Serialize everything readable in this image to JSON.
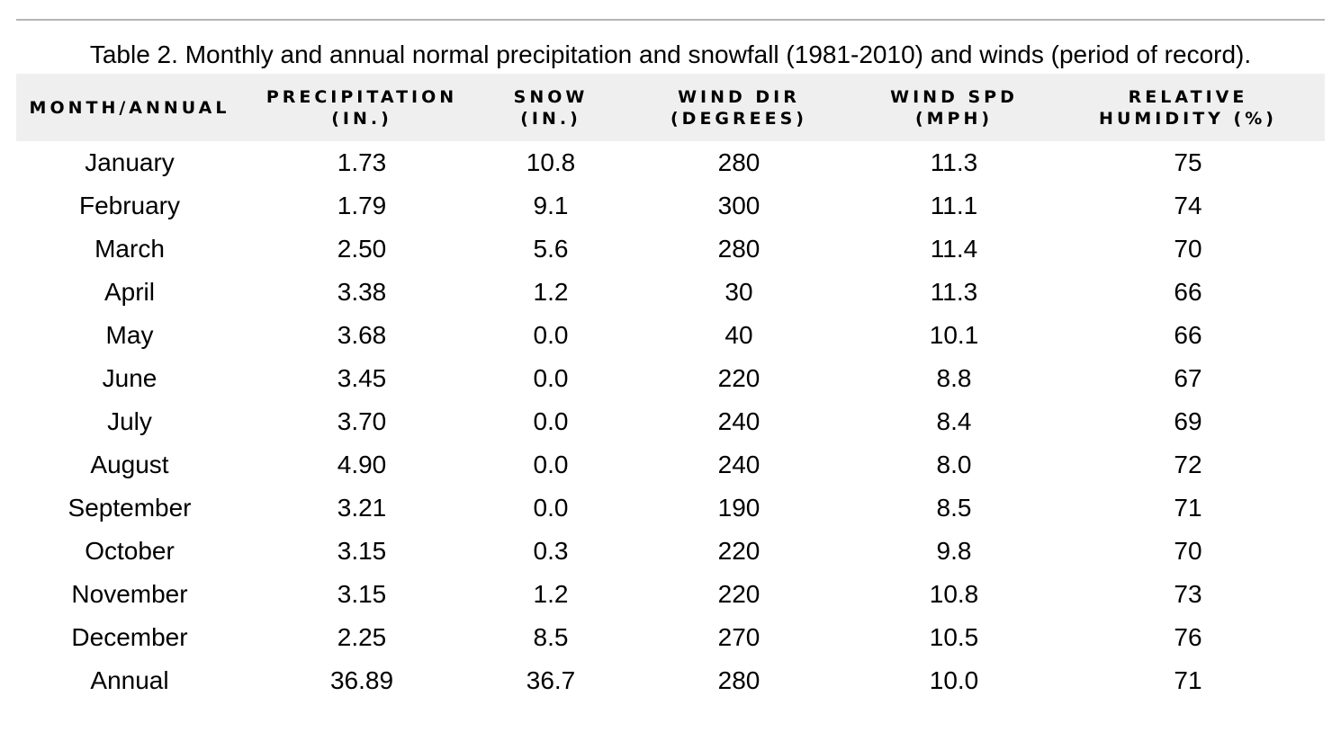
{
  "caption": "Table 2. Monthly and annual normal precipitation and snowfall (1981-2010) and winds (period of record).",
  "columns": [
    "MONTH/ANNUAL",
    "PRECIPITATION\n(IN.)",
    "SNOW\n(IN.)",
    "WIND DIR\n(DEGREES)",
    "WIND SPD\n(MPH)",
    "RELATIVE\nHUMIDITY (%)"
  ],
  "rows": [
    [
      "January",
      "1.73",
      "10.8",
      "280",
      "11.3",
      "75"
    ],
    [
      "February",
      "1.79",
      "9.1",
      "300",
      "11.1",
      "74"
    ],
    [
      "March",
      "2.50",
      "5.6",
      "280",
      "11.4",
      "70"
    ],
    [
      "April",
      "3.38",
      "1.2",
      "30",
      "11.3",
      "66"
    ],
    [
      "May",
      "3.68",
      "0.0",
      "40",
      "10.1",
      "66"
    ],
    [
      "June",
      "3.45",
      "0.0",
      "220",
      "8.8",
      "67"
    ],
    [
      "July",
      "3.70",
      "0.0",
      "240",
      "8.4",
      "69"
    ],
    [
      "August",
      "4.90",
      "0.0",
      "240",
      "8.0",
      "72"
    ],
    [
      "September",
      "3.21",
      "0.0",
      "190",
      "8.5",
      "71"
    ],
    [
      "October",
      "3.15",
      "0.3",
      "220",
      "9.8",
      "70"
    ],
    [
      "November",
      "3.15",
      "1.2",
      "220",
      "10.8",
      "73"
    ],
    [
      "December",
      "2.25",
      "8.5",
      "270",
      "10.5",
      "76"
    ],
    [
      "Annual",
      "36.89",
      "36.7",
      "280",
      "10.0",
      "71"
    ]
  ]
}
